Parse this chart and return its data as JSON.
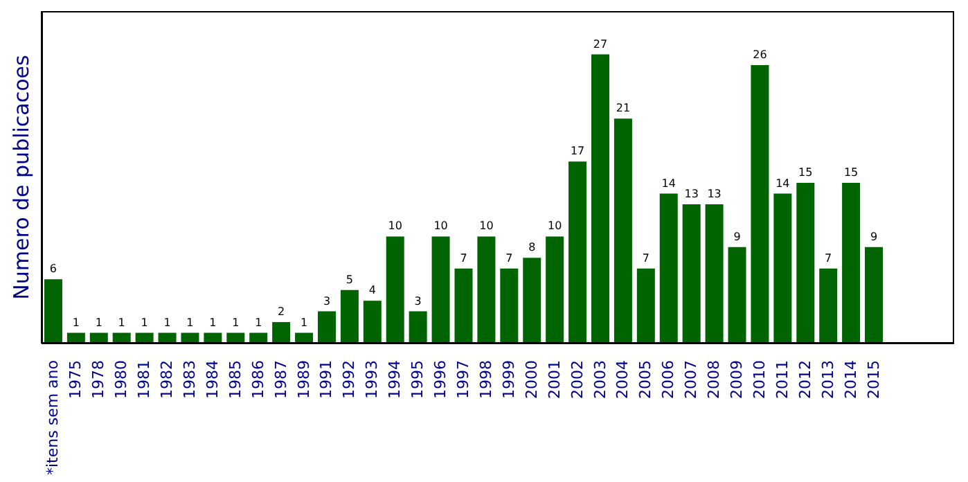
{
  "chart_data": {
    "type": "bar",
    "ylabel": "Numero de publicacoes",
    "categories": [
      "*itens sem ano",
      "1975",
      "1978",
      "1980",
      "1981",
      "1982",
      "1983",
      "1984",
      "1985",
      "1986",
      "1987",
      "1989",
      "1991",
      "1992",
      "1993",
      "1994",
      "1995",
      "1996",
      "1997",
      "1998",
      "1999",
      "2000",
      "2001",
      "2002",
      "2003",
      "2004",
      "2005",
      "2006",
      "2007",
      "2008",
      "2009",
      "2010",
      "2011",
      "2012",
      "2013",
      "2014",
      "2015"
    ],
    "values": [
      6,
      1,
      1,
      1,
      1,
      1,
      1,
      1,
      1,
      1,
      2,
      1,
      3,
      5,
      4,
      10,
      3,
      10,
      7,
      10,
      7,
      8,
      10,
      17,
      27,
      21,
      7,
      14,
      13,
      13,
      9,
      26,
      14,
      15,
      7,
      15,
      9
    ],
    "color": "#006400",
    "data_labels": true,
    "tick_labels": "x",
    "grid": false
  }
}
